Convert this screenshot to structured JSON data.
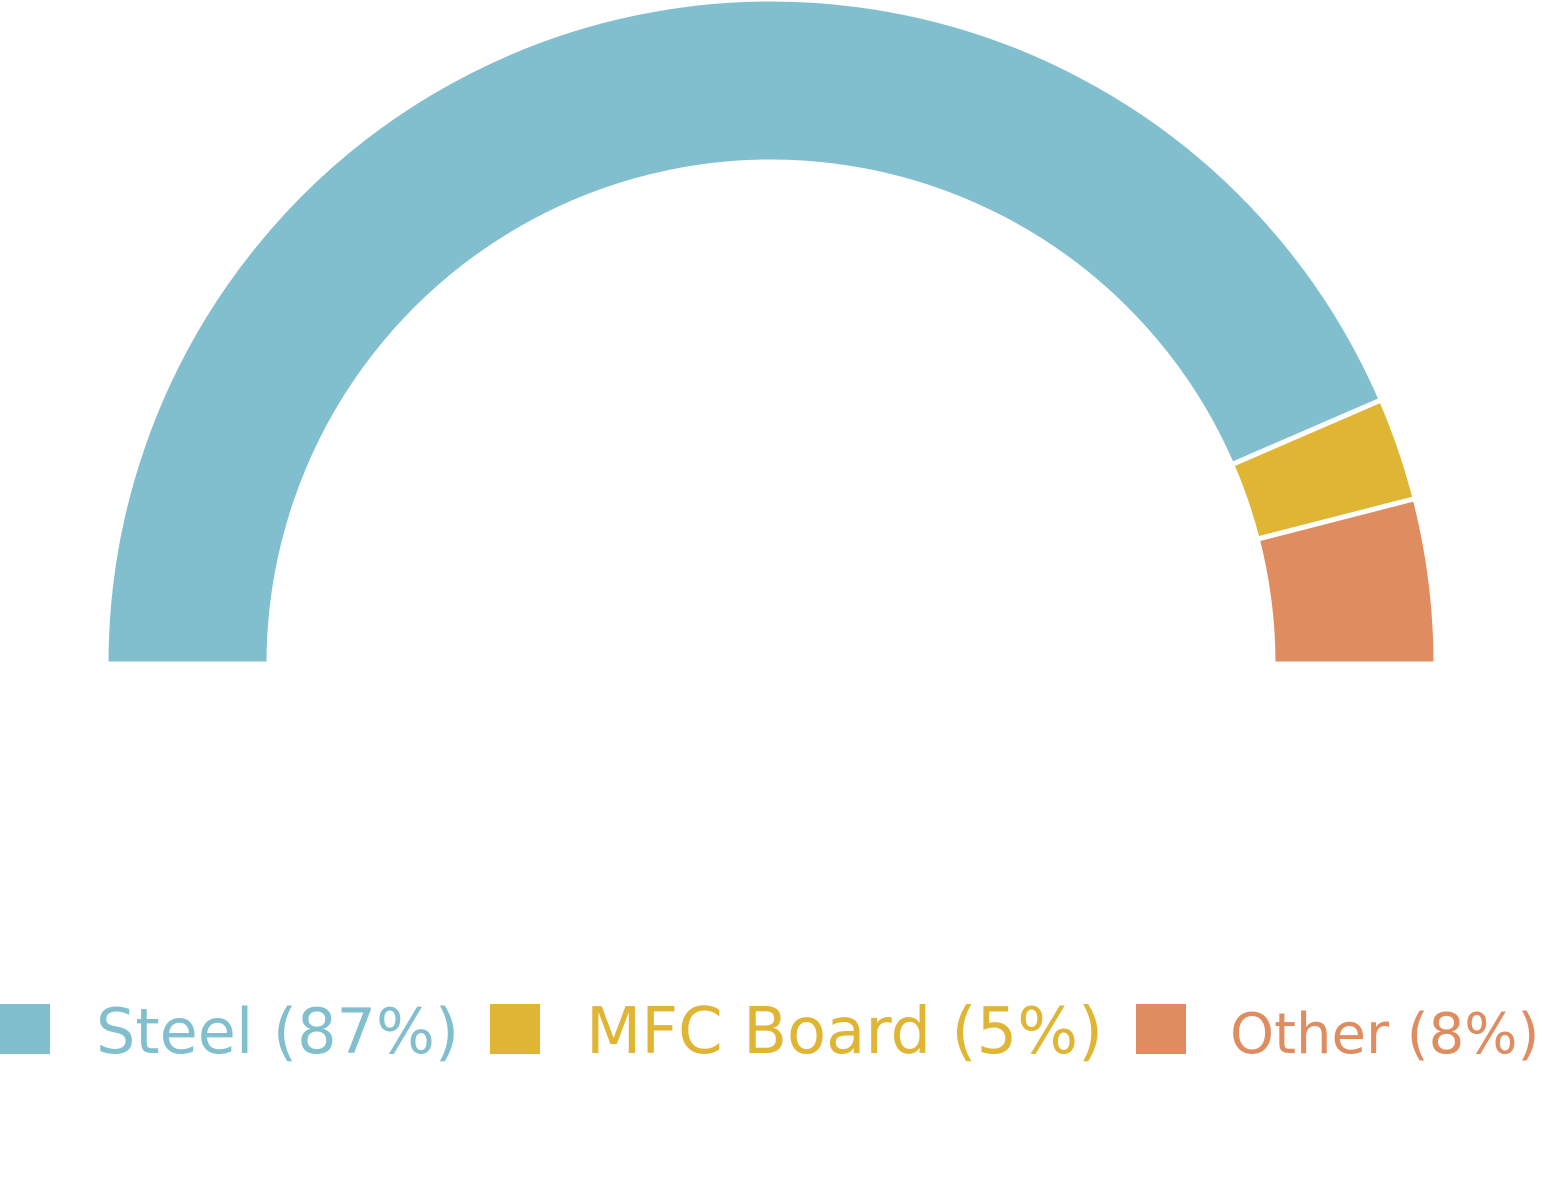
{
  "chart_data": {
    "type": "pie",
    "variant": "semi-donut",
    "title": "",
    "slices": [
      {
        "label": "Steel (87%)",
        "value": 87,
        "color": "#81bfce"
      },
      {
        "label": "MFC Board (5%)",
        "value": 5,
        "color": "#e0b534"
      },
      {
        "label": "Other (8%)",
        "value": 8,
        "color": "#df8c60"
      }
    ],
    "legend_position": "bottom"
  }
}
